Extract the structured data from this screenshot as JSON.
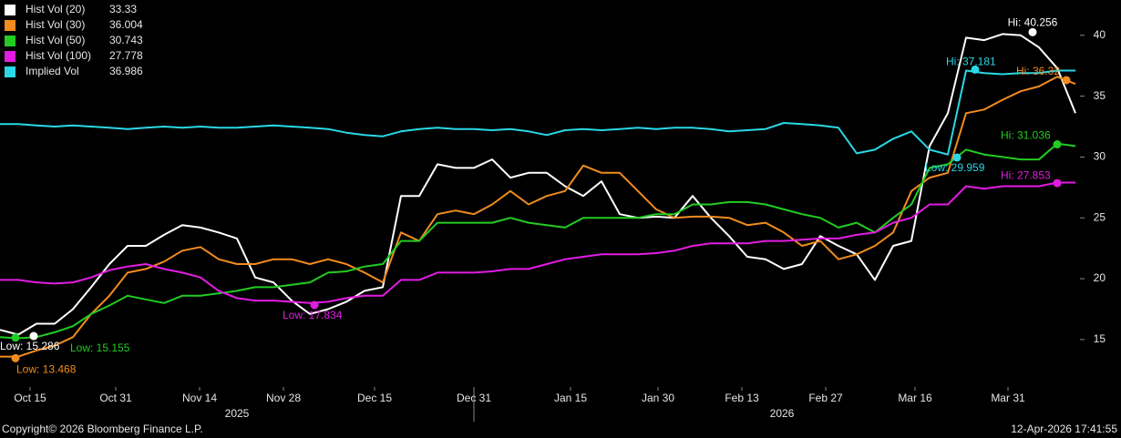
{
  "chart_data": {
    "type": "line",
    "series": [
      {
        "name": "Hist Vol (20)",
        "last": 33.33,
        "color": "#ffffff",
        "values": [
          15.8,
          15.4,
          16.3,
          16.3,
          17.5,
          19.3,
          21.2,
          22.7,
          22.7,
          23.6,
          24.4,
          24.2,
          23.8,
          23.3,
          20.1,
          19.7,
          18.2,
          17.1,
          17.5,
          18.1,
          19,
          19.3,
          26.8,
          26.8,
          29.4,
          29.1,
          29.1,
          29.8,
          28.3,
          28.7,
          28.7,
          27.6,
          26.8,
          28,
          25.3,
          25,
          25.1,
          25,
          26.8,
          25,
          23.5,
          21.8,
          21.6,
          20.8,
          21.2,
          23.5,
          22.7,
          22,
          19.9,
          22.7,
          23.1,
          30.9,
          33.6,
          39.8,
          39.6,
          40.1,
          40.0,
          39.0,
          37.3,
          33.6
        ]
      },
      {
        "name": "Hist Vol (30)",
        "last": 36.004,
        "color": "#f28c1e",
        "values": [
          13.6,
          13.6,
          14.1,
          14.5,
          15.2,
          17.1,
          18.6,
          20.5,
          20.8,
          21.4,
          22.3,
          22.6,
          21.6,
          21.2,
          21.2,
          21.6,
          21.6,
          21.2,
          21.6,
          21.2,
          20.5,
          19.7,
          23.8,
          23.1,
          25.3,
          25.6,
          25.3,
          26.1,
          27.2,
          26.1,
          26.8,
          27.2,
          29.3,
          28.7,
          28.7,
          27.2,
          25.7,
          25,
          25.1,
          25.1,
          25,
          24.4,
          24.6,
          23.8,
          22.7,
          23.1,
          21.6,
          22,
          22.7,
          23.8,
          27.2,
          28.3,
          28.7,
          33.6,
          33.9,
          34.7,
          35.4,
          35.8,
          36.6,
          36
        ]
      },
      {
        "name": "Hist Vol (50)",
        "last": 30.743,
        "color": "#22cc22",
        "values": [
          15.2,
          15.1,
          15.2,
          15.6,
          16.1,
          17.1,
          17.8,
          18.6,
          18.3,
          18,
          18.6,
          18.6,
          18.8,
          19,
          19.3,
          19.3,
          19.5,
          19.7,
          20.5,
          20.6,
          21,
          21.2,
          23.1,
          23.1,
          24.6,
          24.6,
          24.6,
          24.6,
          25,
          24.6,
          24.4,
          24.2,
          25,
          25,
          25,
          25,
          25.3,
          25.3,
          26.1,
          26.1,
          26.3,
          26.3,
          26.1,
          25.7,
          25.3,
          25,
          24.2,
          24.6,
          23.8,
          25,
          26.1,
          29.1,
          29.4,
          30.6,
          30.2,
          30,
          29.8,
          29.8,
          31.1,
          30.9
        ]
      },
      {
        "name": "Hist Vol (100)",
        "last": 27.778,
        "color": "#e21de2",
        "values": [
          19.9,
          19.9,
          19.7,
          19.6,
          19.7,
          20.1,
          20.7,
          21,
          21.2,
          20.8,
          20.5,
          20.1,
          19,
          18.4,
          18.2,
          18.2,
          18.1,
          18,
          18.1,
          18.4,
          18.6,
          18.6,
          19.9,
          19.9,
          20.5,
          20.5,
          20.5,
          20.6,
          20.8,
          20.8,
          21.2,
          21.6,
          21.8,
          22,
          22,
          22,
          22.1,
          22.3,
          22.7,
          22.9,
          22.9,
          22.9,
          23.1,
          23.1,
          23.2,
          23.3,
          23.3,
          23.6,
          23.8,
          24.6,
          25,
          26.1,
          26.1,
          27.6,
          27.4,
          27.6,
          27.6,
          27.6,
          27.9,
          27.9
        ]
      },
      {
        "name": "Implied Vol",
        "last": 36.986,
        "color": "#2ad8e6",
        "values": [
          32.7,
          32.7,
          32.6,
          32.5,
          32.6,
          32.5,
          32.4,
          32.3,
          32.4,
          32.5,
          32.4,
          32.5,
          32.4,
          32.4,
          32.5,
          32.6,
          32.5,
          32.4,
          32.3,
          32.0,
          31.8,
          31.7,
          32.1,
          32.3,
          32.4,
          32.3,
          32.3,
          32.2,
          32.3,
          32.1,
          31.8,
          32.2,
          32.3,
          32.2,
          32.3,
          32.4,
          32.3,
          32.4,
          32.4,
          32.3,
          32.1,
          32.2,
          32.3,
          32.8,
          32.7,
          32.6,
          32.4,
          30.3,
          30.6,
          31.5,
          32.1,
          30.6,
          30.2,
          37.1,
          36.9,
          36.8,
          36.9,
          36.9,
          37.1,
          37.1
        ]
      }
    ],
    "annotations": [
      {
        "text": "Hi: 40.256",
        "series": 0,
        "x": 56.65,
        "value": 40.256
      },
      {
        "text": "Low: 15.286",
        "series": 0,
        "x": 1.85,
        "value": 15.286
      },
      {
        "text": "Low: 13.468",
        "series": 1,
        "x": 0.85,
        "value": 13.468
      },
      {
        "text": "Low: 15.155",
        "series": 2,
        "x": 0.85,
        "value": 15.155
      },
      {
        "text": "Low: 17.834",
        "series": 3,
        "x": 17.25,
        "value": 17.834
      },
      {
        "text": "Low: 29.959",
        "series": 4,
        "x": 52.5,
        "value": 29.959
      },
      {
        "text": "Hi: 37.181",
        "series": 4,
        "x": 53.5,
        "value": 37.181
      },
      {
        "text": "Hi: 36.32",
        "series": 1,
        "x": 58.5,
        "value": 36.32
      },
      {
        "text": "Hi: 31.036",
        "series": 2,
        "x": 58,
        "value": 31.036
      },
      {
        "text": "Hi: 27.853",
        "series": 3,
        "x": 58,
        "value": 27.853
      }
    ],
    "xlim": [
      0,
      59.25
    ],
    "xticks": [
      {
        "value": 1.65,
        "label": "Oct 15"
      },
      {
        "value": 6.35,
        "label": "Oct 31"
      },
      {
        "value": 10.95,
        "label": "Nov 14"
      },
      {
        "value": 15.55,
        "label": "Nov 28"
      },
      {
        "value": 20.55,
        "label": "Dec 15"
      },
      {
        "value": 26,
        "label": "Dec 31"
      },
      {
        "value": 31.3,
        "label": "Jan 15"
      },
      {
        "value": 36.1,
        "label": "Jan 30"
      },
      {
        "value": 40.7,
        "label": "Feb 13"
      },
      {
        "value": 45.3,
        "label": "Feb 27"
      },
      {
        "value": 50.2,
        "label": "Mar 16"
      },
      {
        "value": 55.3,
        "label": "Mar 31"
      }
    ],
    "year_labels": [
      {
        "value": 13,
        "label": "2025"
      },
      {
        "value": 42.9,
        "label": "2026"
      }
    ],
    "year_divider": 26,
    "ylim": [
      11.1,
      42.9
    ],
    "yticks": [
      15,
      20,
      25,
      30,
      35,
      40
    ],
    "grid": false,
    "copyright": "Copyright© 2026 Bloomberg Finance L.P.",
    "timestamp": "12-Apr-2026 17:41:55"
  }
}
